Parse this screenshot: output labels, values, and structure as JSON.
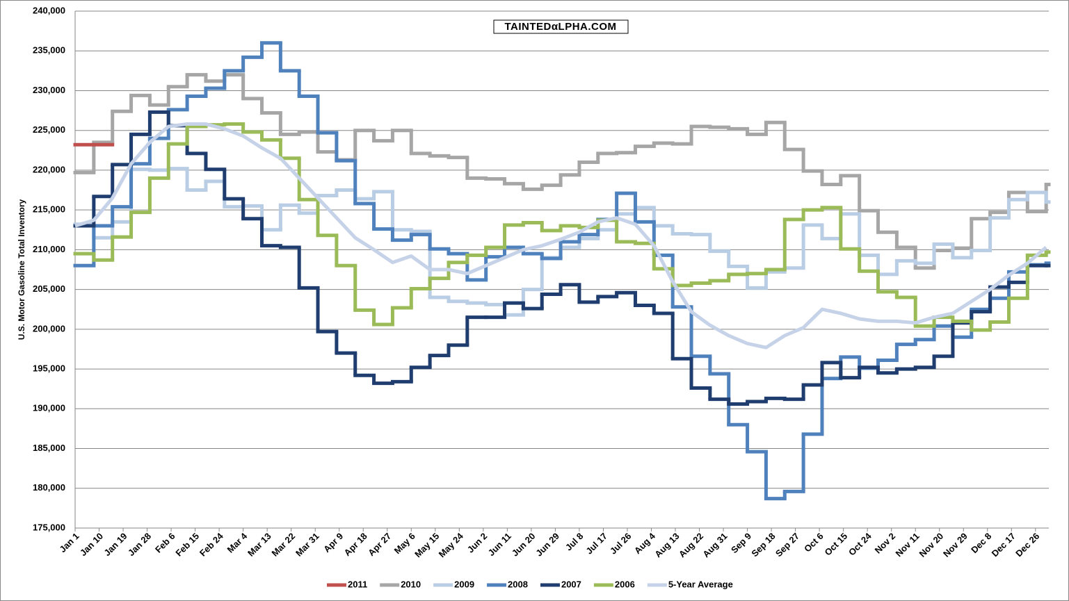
{
  "chart_data": {
    "type": "line",
    "watermark": "TAINTEDαLPHA.COM",
    "y_label": "U.S. Motor Gasoline Total Inventory",
    "x": [
      0,
      7,
      14,
      21,
      28,
      35,
      42,
      49,
      56,
      63,
      70,
      77,
      84,
      91,
      98,
      105,
      112,
      119,
      126,
      133,
      140,
      147,
      154,
      161,
      168,
      175,
      182,
      189,
      196,
      203,
      210,
      217,
      224,
      231,
      238,
      245,
      252,
      259,
      266,
      273,
      280,
      287,
      294,
      301,
      308,
      315,
      322,
      329,
      336,
      343,
      350,
      357,
      364
    ],
    "xlim": [
      0,
      365
    ],
    "xticks": [
      {
        "value": 0,
        "label": "Jan 1"
      },
      {
        "value": 9,
        "label": "Jan 10"
      },
      {
        "value": 18,
        "label": "Jan 19"
      },
      {
        "value": 27,
        "label": "Jan 28"
      },
      {
        "value": 36,
        "label": "Feb 6"
      },
      {
        "value": 45,
        "label": "Feb 15"
      },
      {
        "value": 54,
        "label": "Feb 24"
      },
      {
        "value": 63,
        "label": "Mar 4"
      },
      {
        "value": 72,
        "label": "Mar 13"
      },
      {
        "value": 81,
        "label": "Mar 22"
      },
      {
        "value": 90,
        "label": "Mar 31"
      },
      {
        "value": 99,
        "label": "Apr 9"
      },
      {
        "value": 108,
        "label": "Apr 18"
      },
      {
        "value": 117,
        "label": "Apr 27"
      },
      {
        "value": 126,
        "label": "May 6"
      },
      {
        "value": 135,
        "label": "May 15"
      },
      {
        "value": 144,
        "label": "May 24"
      },
      {
        "value": 153,
        "label": "Jun 2"
      },
      {
        "value": 162,
        "label": "Jun 11"
      },
      {
        "value": 171,
        "label": "Jun 20"
      },
      {
        "value": 180,
        "label": "Jun 29"
      },
      {
        "value": 189,
        "label": "Jul 8"
      },
      {
        "value": 198,
        "label": "Jul 17"
      },
      {
        "value": 207,
        "label": "Jul 26"
      },
      {
        "value": 216,
        "label": "Aug 4"
      },
      {
        "value": 225,
        "label": "Aug 13"
      },
      {
        "value": 234,
        "label": "Aug 22"
      },
      {
        "value": 243,
        "label": "Aug 31"
      },
      {
        "value": 252,
        "label": "Sep 9"
      },
      {
        "value": 261,
        "label": "Sep 18"
      },
      {
        "value": 270,
        "label": "Sep 27"
      },
      {
        "value": 279,
        "label": "Oct 6"
      },
      {
        "value": 288,
        "label": "Oct 15"
      },
      {
        "value": 297,
        "label": "Oct 24"
      },
      {
        "value": 306,
        "label": "Nov 2"
      },
      {
        "value": 315,
        "label": "Nov 11"
      },
      {
        "value": 324,
        "label": "Nov 20"
      },
      {
        "value": 333,
        "label": "Nov 29"
      },
      {
        "value": 342,
        "label": "Dec 8"
      },
      {
        "value": 351,
        "label": "Dec 17"
      },
      {
        "value": 360,
        "label": "Dec 26"
      }
    ],
    "ylim": [
      175000,
      240000
    ],
    "yticks": [
      {
        "value": 175000,
        "label": "175,000"
      },
      {
        "value": 180000,
        "label": "180,000"
      },
      {
        "value": 185000,
        "label": "185,000"
      },
      {
        "value": 190000,
        "label": "190,000"
      },
      {
        "value": 195000,
        "label": "195,000"
      },
      {
        "value": 200000,
        "label": "200,000"
      },
      {
        "value": 205000,
        "label": "205,000"
      },
      {
        "value": 210000,
        "label": "210,000"
      },
      {
        "value": 215000,
        "label": "215,000"
      },
      {
        "value": 220000,
        "label": "220,000"
      },
      {
        "value": 225000,
        "label": "225,000"
      },
      {
        "value": 230000,
        "label": "230,000"
      },
      {
        "value": 235000,
        "label": "235,000"
      },
      {
        "value": 240000,
        "label": "240,000"
      }
    ],
    "grid": true,
    "legend": "bottom",
    "series": [
      {
        "name": "2010",
        "color": "#a6a6a6",
        "step": true,
        "values": [
          219700,
          223500,
          227400,
          229400,
          228200,
          230500,
          232000,
          231200,
          232000,
          229000,
          227200,
          224500,
          224800,
          222300,
          221300,
          225000,
          223700,
          225000,
          222100,
          221800,
          221600,
          219000,
          218900,
          218300,
          217600,
          218100,
          219400,
          221000,
          222100,
          222200,
          223000,
          223400,
          223300,
          225500,
          225400,
          225200,
          224500,
          226000,
          222600,
          219900,
          218200,
          219300,
          214900,
          212200,
          210300,
          207700,
          209900,
          210200,
          213900,
          214700,
          217200,
          214800,
          218200
        ]
      },
      {
        "name": "2009",
        "color": "#b9cde5",
        "step": true,
        "values": [
          213200,
          211500,
          213500,
          220100,
          220000,
          220200,
          217500,
          218600,
          215400,
          215500,
          212500,
          215600,
          214600,
          216800,
          217500,
          216400,
          217300,
          212500,
          212300,
          204000,
          203500,
          203300,
          203100,
          201800,
          205000,
          209000,
          210300,
          211400,
          212500,
          214500,
          215300,
          213000,
          212000,
          211900,
          209800,
          207900,
          205200,
          207200,
          207700,
          213100,
          211400,
          214500,
          209300,
          206900,
          208600,
          208300,
          210700,
          209000,
          209900,
          214000,
          216300,
          217200,
          216000
        ]
      },
      {
        "name": "2008",
        "color": "#4f81bd",
        "step": true,
        "values": [
          208000,
          213000,
          215400,
          220800,
          224000,
          227600,
          229300,
          230300,
          232500,
          234200,
          236000,
          232500,
          229300,
          224700,
          221200,
          215800,
          212600,
          211200,
          211900,
          210100,
          209500,
          206200,
          209100,
          210300,
          209500,
          208900,
          211000,
          211900,
          213800,
          217100,
          213500,
          209300,
          202800,
          196600,
          194400,
          188000,
          184600,
          178700,
          179600,
          186800,
          193800,
          196500,
          195100,
          196100,
          198100,
          198700,
          200400,
          199000,
          202500,
          203900,
          207200,
          208100,
          208300
        ]
      },
      {
        "name": "2007",
        "color": "#1f3d6e",
        "step": true,
        "values": [
          213000,
          216700,
          220700,
          224500,
          227300,
          225600,
          222100,
          220100,
          216400,
          213900,
          210500,
          210300,
          205200,
          199700,
          197000,
          194200,
          193200,
          193400,
          195200,
          196700,
          198000,
          201500,
          201500,
          203300,
          202600,
          204400,
          205600,
          203400,
          204100,
          204600,
          203000,
          202000,
          196300,
          192600,
          191200,
          190600,
          190900,
          191300,
          191200,
          193000,
          195800,
          193900,
          195200,
          194500,
          195000,
          195200,
          196600,
          200800,
          202200,
          205300,
          205900,
          208000,
          208000
        ]
      },
      {
        "name": "2006",
        "color": "#9bbb59",
        "step": true,
        "values": [
          209500,
          208700,
          211600,
          214700,
          219000,
          223300,
          225500,
          225700,
          225800,
          224800,
          223800,
          221500,
          216300,
          211800,
          208000,
          202400,
          200600,
          202700,
          205100,
          206400,
          208400,
          209300,
          210300,
          213100,
          213400,
          212400,
          213000,
          212800,
          213700,
          211000,
          210800,
          207600,
          205500,
          205800,
          206100,
          206900,
          207000,
          207500,
          213800,
          215000,
          215300,
          210100,
          207300,
          204700,
          204000,
          200400,
          201500,
          201000,
          199900,
          200900,
          203900,
          209300,
          209700
        ]
      },
      {
        "name": "5-Year Average",
        "color": "#c6d2e8",
        "step": false,
        "values": [
          213000,
          213700,
          216500,
          220800,
          223500,
          225500,
          225800,
          225800,
          225200,
          224300,
          222800,
          221500,
          219000,
          216500,
          214000,
          211500,
          210000,
          208400,
          209200,
          207500,
          207500,
          207000,
          208000,
          209000,
          210000,
          210500,
          211300,
          212200,
          213500,
          214000,
          213200,
          210500,
          206000,
          202200,
          200500,
          199200,
          198200,
          197700,
          199200,
          200200,
          202500,
          202000,
          201300,
          201000,
          201000,
          200800,
          201500,
          202000,
          203500,
          205000,
          206800,
          208300,
          210300
        ]
      },
      {
        "name": "2011",
        "color": "#c0504d",
        "step": true,
        "values": [
          223200,
          223200,
          null,
          null,
          null,
          null,
          null,
          null,
          null,
          null,
          null,
          null,
          null,
          null,
          null,
          null,
          null,
          null,
          null,
          null,
          null,
          null,
          null,
          null,
          null,
          null,
          null,
          null,
          null,
          null,
          null,
          null,
          null,
          null,
          null,
          null,
          null,
          null,
          null,
          null,
          null,
          null,
          null,
          null,
          null,
          null,
          null,
          null,
          null,
          null,
          null,
          null,
          null
        ]
      }
    ],
    "legend_order": [
      "2011",
      "2010",
      "2009",
      "2008",
      "2007",
      "2006",
      "5-Year Average"
    ]
  }
}
